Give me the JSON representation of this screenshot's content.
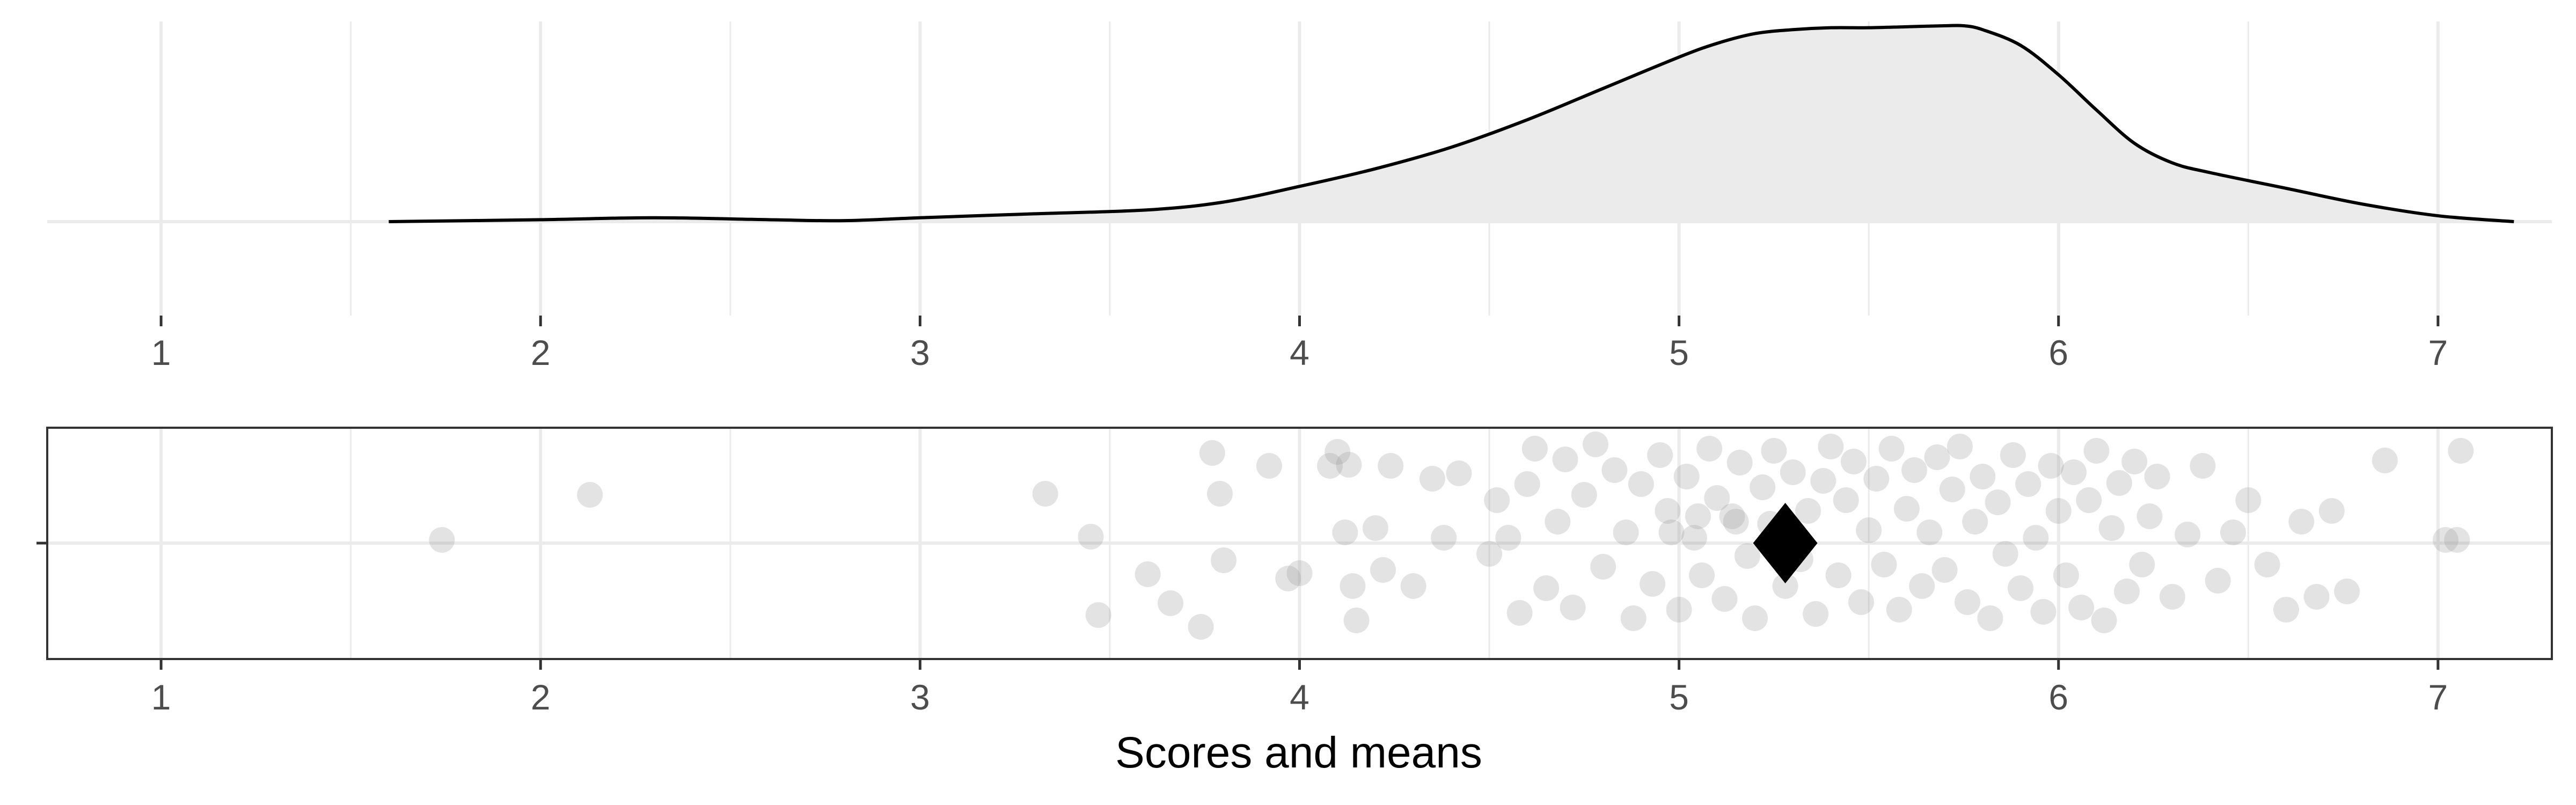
{
  "chart_data": [
    {
      "type": "area",
      "title": "",
      "xlabel": "",
      "ylabel": "",
      "xlim": [
        0.7,
        7.3
      ],
      "x_ticks": [
        "1",
        "2",
        "3",
        "4",
        "5",
        "6",
        "7"
      ],
      "grid": true,
      "series": [
        {
          "x": [
            1.6,
            2.0,
            2.3,
            2.6,
            2.8,
            3.0,
            3.3,
            3.6,
            3.8,
            4.0,
            4.2,
            4.4,
            4.6,
            4.8,
            5.0,
            5.1,
            5.2,
            5.3,
            5.4,
            5.5,
            5.6,
            5.7,
            5.75,
            5.8,
            5.9,
            6.0,
            6.1,
            6.2,
            6.3,
            6.4,
            6.6,
            6.8,
            7.0,
            7.2
          ],
          "y": [
            0.0,
            0.01,
            0.02,
            0.01,
            0.005,
            0.02,
            0.04,
            0.06,
            0.1,
            0.18,
            0.27,
            0.38,
            0.52,
            0.68,
            0.84,
            0.91,
            0.96,
            0.98,
            0.99,
            0.99,
            0.995,
            1.0,
            1.0,
            0.98,
            0.9,
            0.75,
            0.57,
            0.4,
            0.3,
            0.25,
            0.17,
            0.09,
            0.03,
            0.0
          ]
        }
      ]
    },
    {
      "type": "scatter",
      "title": "",
      "xlabel": "Scores and means",
      "ylabel": "",
      "xlim": [
        0.7,
        7.3
      ],
      "x_ticks": [
        "1",
        "2",
        "3",
        "4",
        "5",
        "6",
        "7"
      ],
      "grid": true,
      "points": [
        [
          1.74,
          0.03
        ],
        [
          2.13,
          0.45
        ],
        [
          3.33,
          0.46
        ],
        [
          3.45,
          0.06
        ],
        [
          3.47,
          -0.67
        ],
        [
          3.6,
          -0.29
        ],
        [
          3.66,
          -0.56
        ],
        [
          3.74,
          -0.78
        ],
        [
          3.77,
          0.84
        ],
        [
          3.79,
          0.46
        ],
        [
          3.8,
          -0.16
        ],
        [
          3.92,
          0.72
        ],
        [
          3.97,
          -0.33
        ],
        [
          4.0,
          -0.28
        ],
        [
          4.08,
          0.72
        ],
        [
          4.1,
          0.85
        ],
        [
          4.13,
          0.73
        ],
        [
          4.14,
          -0.4
        ],
        [
          4.15,
          -0.72
        ],
        [
          4.12,
          0.1
        ],
        [
          4.2,
          0.14
        ],
        [
          4.22,
          -0.25
        ],
        [
          4.24,
          0.72
        ],
        [
          4.3,
          -0.4
        ],
        [
          4.35,
          0.6
        ],
        [
          4.38,
          0.05
        ],
        [
          4.42,
          0.65
        ],
        [
          4.5,
          -0.1
        ],
        [
          4.52,
          0.4
        ],
        [
          4.55,
          0.05
        ],
        [
          4.58,
          -0.65
        ],
        [
          4.6,
          0.55
        ],
        [
          4.62,
          0.88
        ],
        [
          4.65,
          -0.42
        ],
        [
          4.68,
          0.2
        ],
        [
          4.7,
          0.78
        ],
        [
          4.72,
          -0.6
        ],
        [
          4.75,
          0.45
        ],
        [
          4.78,
          0.92
        ],
        [
          4.8,
          -0.22
        ],
        [
          4.83,
          0.68
        ],
        [
          4.86,
          0.1
        ],
        [
          4.88,
          -0.7
        ],
        [
          4.9,
          0.55
        ],
        [
          4.93,
          -0.38
        ],
        [
          4.95,
          0.82
        ],
        [
          4.97,
          0.3
        ],
        [
          5.0,
          -0.62
        ],
        [
          5.02,
          0.62
        ],
        [
          5.04,
          0.05
        ],
        [
          5.06,
          -0.3
        ],
        [
          5.08,
          0.88
        ],
        [
          5.1,
          0.42
        ],
        [
          5.12,
          -0.52
        ],
        [
          5.14,
          0.25
        ],
        [
          5.16,
          0.75
        ],
        [
          5.18,
          -0.12
        ],
        [
          5.2,
          -0.7
        ],
        [
          5.22,
          0.52
        ],
        [
          5.24,
          0.18
        ],
        [
          5.25,
          0.86
        ],
        [
          5.28,
          -0.4
        ],
        [
          5.3,
          0.66
        ],
        [
          5.32,
          -0.15
        ],
        [
          5.34,
          0.3
        ],
        [
          5.36,
          -0.66
        ],
        [
          5.38,
          0.58
        ],
        [
          5.4,
          0.9
        ],
        [
          5.42,
          -0.3
        ],
        [
          5.44,
          0.4
        ],
        [
          5.46,
          0.76
        ],
        [
          5.48,
          -0.55
        ],
        [
          5.5,
          0.12
        ],
        [
          5.52,
          0.6
        ],
        [
          5.54,
          -0.2
        ],
        [
          5.56,
          0.88
        ],
        [
          5.58,
          -0.62
        ],
        [
          5.6,
          0.32
        ],
        [
          5.62,
          0.68
        ],
        [
          5.64,
          -0.4
        ],
        [
          5.66,
          0.1
        ],
        [
          5.68,
          0.8
        ],
        [
          5.7,
          -0.25
        ],
        [
          5.72,
          0.5
        ],
        [
          5.74,
          0.9
        ],
        [
          5.76,
          -0.55
        ],
        [
          5.78,
          0.2
        ],
        [
          5.8,
          0.62
        ],
        [
          5.82,
          -0.7
        ],
        [
          5.84,
          0.38
        ],
        [
          5.86,
          -0.1
        ],
        [
          5.88,
          0.82
        ],
        [
          5.9,
          -0.42
        ],
        [
          5.92,
          0.55
        ],
        [
          5.94,
          0.05
        ],
        [
          5.96,
          -0.64
        ],
        [
          5.98,
          0.72
        ],
        [
          6.0,
          0.3
        ],
        [
          6.02,
          -0.3
        ],
        [
          6.04,
          0.66
        ],
        [
          6.06,
          -0.6
        ],
        [
          6.08,
          0.4
        ],
        [
          6.1,
          0.86
        ],
        [
          6.12,
          -0.72
        ],
        [
          6.14,
          0.14
        ],
        [
          6.16,
          0.56
        ],
        [
          6.18,
          -0.45
        ],
        [
          6.2,
          0.76
        ],
        [
          6.22,
          -0.2
        ],
        [
          6.24,
          0.25
        ],
        [
          6.26,
          0.62
        ],
        [
          6.3,
          -0.5
        ],
        [
          6.34,
          0.08
        ],
        [
          6.38,
          0.72
        ],
        [
          6.42,
          -0.35
        ],
        [
          6.46,
          0.1
        ],
        [
          6.5,
          0.4
        ],
        [
          6.55,
          -0.2
        ],
        [
          6.6,
          -0.62
        ],
        [
          6.64,
          0.2
        ],
        [
          6.68,
          -0.5
        ],
        [
          6.72,
          0.3
        ],
        [
          6.76,
          -0.45
        ],
        [
          6.86,
          0.77
        ],
        [
          7.02,
          0.03
        ],
        [
          7.05,
          0.03
        ],
        [
          7.06,
          0.86
        ],
        [
          5.05,
          0.25
        ],
        [
          5.15,
          0.2
        ],
        [
          4.98,
          0.1
        ]
      ],
      "mean_marker": {
        "x": 5.28,
        "y": 0.0,
        "shape": "diamond"
      }
    }
  ]
}
